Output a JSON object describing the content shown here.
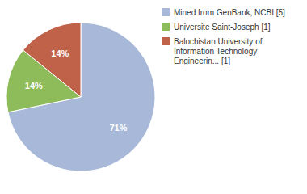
{
  "chart_data": {
    "type": "pie",
    "categories": [
      "Mined from GenBank, NCBI [5]",
      "Universite Saint-Joseph [1]",
      "Balochistan University of\nInformation Technology\nEngineerin... [1]"
    ],
    "values": [
      71,
      14,
      14
    ],
    "value_labels": [
      "71%",
      "14%",
      "14%"
    ],
    "colors": [
      "#a8b8d8",
      "#8fbc5a",
      "#c0614a"
    ],
    "data_labels": true,
    "legend": "right"
  }
}
